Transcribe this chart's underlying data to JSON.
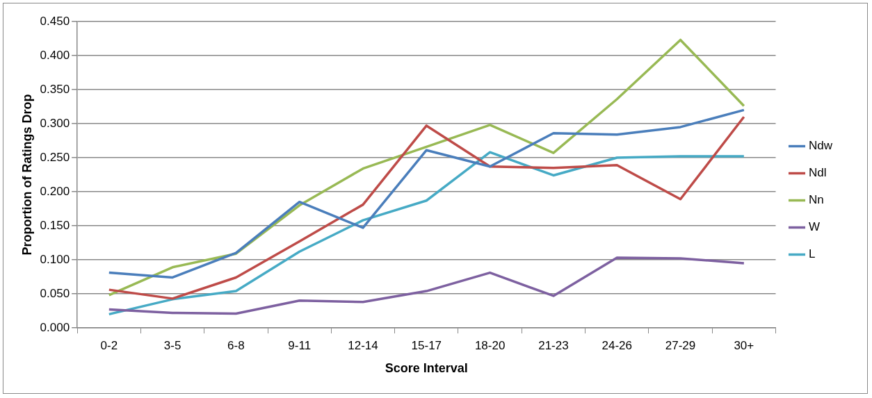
{
  "chart_data": {
    "type": "line",
    "xlabel": "Score Interval",
    "ylabel": "Proportion of Ratings Drop",
    "categories": [
      "0-2",
      "3-5",
      "6-8",
      "9-11",
      "12-14",
      "15-17",
      "18-20",
      "21-23",
      "24-26",
      "27-29",
      "30+"
    ],
    "series": [
      {
        "name": "Ndw",
        "color": "#4a7ebb",
        "values": [
          0.081,
          0.074,
          0.11,
          0.185,
          0.147,
          0.261,
          0.237,
          0.286,
          0.284,
          0.295,
          0.32
        ]
      },
      {
        "name": "Ndl",
        "color": "#be4b48",
        "values": [
          0.056,
          0.043,
          0.074,
          0.127,
          0.181,
          0.297,
          0.237,
          0.235,
          0.239,
          0.189,
          0.31
        ]
      },
      {
        "name": "Nn",
        "color": "#98b954",
        "values": [
          0.048,
          0.089,
          0.109,
          0.18,
          0.234,
          0.266,
          0.298,
          0.257,
          0.336,
          0.423,
          0.326
        ]
      },
      {
        "name": "W",
        "color": "#7d60a0",
        "values": [
          0.027,
          0.022,
          0.021,
          0.04,
          0.038,
          0.054,
          0.081,
          0.047,
          0.103,
          0.102,
          0.095
        ]
      },
      {
        "name": "L",
        "color": "#46aac5",
        "values": [
          0.02,
          0.042,
          0.054,
          0.112,
          0.158,
          0.187,
          0.258,
          0.224,
          0.25,
          0.252,
          0.252
        ]
      }
    ],
    "ylim": [
      0,
      0.45
    ],
    "yticks": [
      {
        "value": 0,
        "label": "0.000"
      },
      {
        "value": 0.05,
        "label": "0.050"
      },
      {
        "value": 0.1,
        "label": "0.100"
      },
      {
        "value": 0.15,
        "label": "0.150"
      },
      {
        "value": 0.2,
        "label": "0.200"
      },
      {
        "value": 0.25,
        "label": "0.250"
      },
      {
        "value": 0.3,
        "label": "0.300"
      },
      {
        "value": 0.35,
        "label": "0.350"
      },
      {
        "value": 0.4,
        "label": "0.400"
      },
      {
        "value": 0.45,
        "label": "0.450"
      }
    ],
    "grid": "y",
    "legend": "right",
    "marker": "none",
    "line_style": "solid"
  }
}
